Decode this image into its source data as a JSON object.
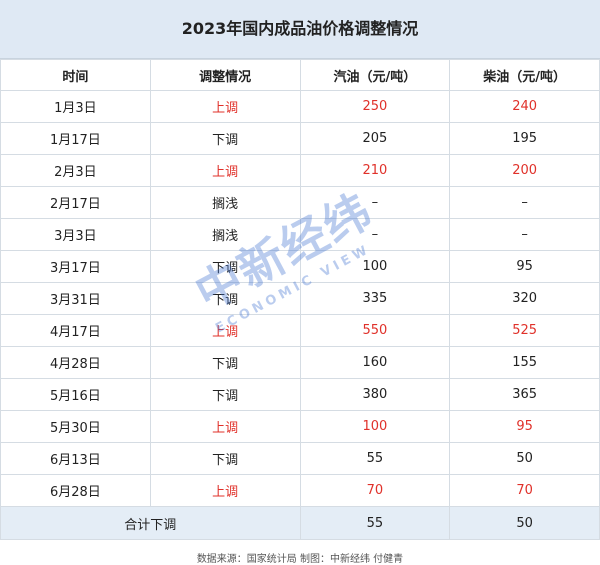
{
  "title": "2023年国内成品油价格调整情况",
  "table": {
    "header": [
      "时间",
      "调整情况",
      "汽油（元/吨）",
      "柴油（元/吨）"
    ],
    "rows": [
      {
        "cells": [
          "1月3日",
          "上调",
          250,
          240
        ],
        "color": "#e0312a"
      },
      {
        "cells": [
          "1月17日",
          "下调",
          205,
          195
        ],
        "color": "#222222"
      },
      {
        "cells": [
          "2月3日",
          "上调",
          210,
          200
        ],
        "color": "#e0312a"
      },
      {
        "cells": [
          "2月17日",
          "搁浅",
          "–",
          "–"
        ],
        "color": "#222222"
      },
      {
        "cells": [
          "3月3日",
          "搁浅",
          "–",
          "–"
        ],
        "color": "#222222"
      },
      {
        "cells": [
          "3月17日",
          "下调",
          100,
          95
        ],
        "color": "#222222"
      },
      {
        "cells": [
          "3月31日",
          "下调",
          335,
          320
        ],
        "color": "#222222"
      },
      {
        "cells": [
          "4月17日",
          "上调",
          550,
          525
        ],
        "color": "#e0312a"
      },
      {
        "cells": [
          "4月28日",
          "下调",
          160,
          155
        ],
        "color": "#222222"
      },
      {
        "cells": [
          "5月16日",
          "下调",
          380,
          365
        ],
        "color": "#222222"
      },
      {
        "cells": [
          "5月30日",
          "上调",
          100,
          95
        ],
        "color": "#e0312a"
      },
      {
        "cells": [
          "6月13日",
          "下调",
          55,
          50
        ],
        "color": "#222222"
      },
      {
        "cells": [
          "6月28日",
          "上调",
          70,
          70
        ],
        "color": "#e0312a"
      }
    ],
    "total": [
      "合计下调",
      55,
      50
    ]
  },
  "watermark": {
    "main": "中新经纬",
    "sub": "ECONOMIC VIEW"
  },
  "source": "数据来源：国家统计局 制图：中新经纬 付健青"
}
